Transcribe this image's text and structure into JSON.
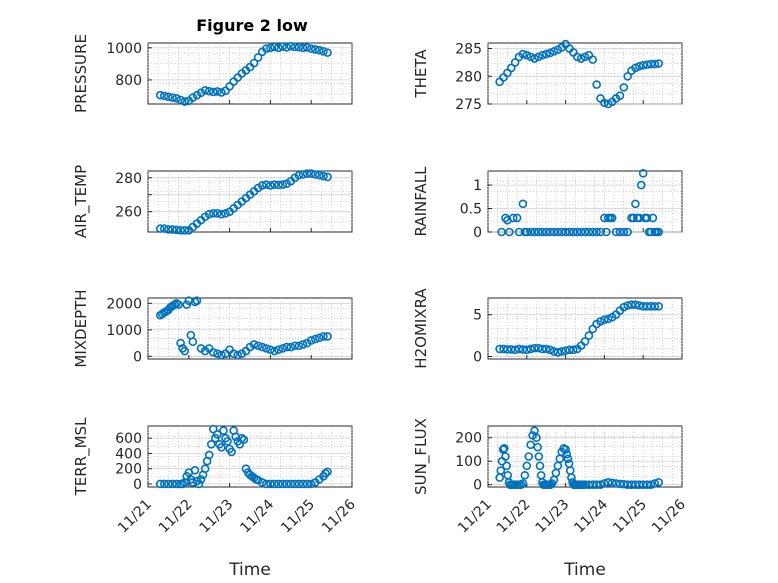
{
  "figure": {
    "title": "Figure 2 low",
    "marker_color": "#0072BD",
    "axis_color": "#262626",
    "grid": "on"
  },
  "chart_data": [
    {
      "type": "scatter",
      "id": "pressure",
      "ylabel": "PRESSURE",
      "ylim": [
        650,
        1030
      ],
      "yticks": [
        800,
        1000
      ],
      "xticks": [],
      "xlim": [
        0,
        5
      ],
      "xlabel": "",
      "x": [
        0.3,
        0.4,
        0.5,
        0.6,
        0.7,
        0.8,
        0.9,
        1.0,
        1.1,
        1.2,
        1.3,
        1.4,
        1.5,
        1.6,
        1.7,
        1.8,
        1.9,
        2.0,
        2.1,
        2.2,
        2.3,
        2.4,
        2.5,
        2.6,
        2.7,
        2.8,
        2.9,
        3.0,
        3.1,
        3.2,
        3.3,
        3.4,
        3.5,
        3.6,
        3.7,
        3.8,
        3.9,
        4.0,
        4.1,
        4.2,
        4.3,
        4.4
      ],
      "y": [
        705,
        700,
        695,
        690,
        685,
        675,
        665,
        670,
        690,
        705,
        720,
        735,
        730,
        725,
        728,
        722,
        732,
        760,
        790,
        815,
        840,
        860,
        880,
        905,
        940,
        975,
        995,
        1000,
        1005,
        1000,
        1008,
        1003,
        1010,
        1006,
        1004,
        1000,
        1002,
        995,
        990,
        985,
        978,
        970
      ]
    },
    {
      "type": "scatter",
      "id": "theta",
      "ylabel": "THETA",
      "ylim": [
        275,
        286
      ],
      "yticks": [
        275,
        280,
        285
      ],
      "xticks": [],
      "xlim": [
        0,
        5
      ],
      "xlabel": "",
      "x": [
        0.3,
        0.4,
        0.5,
        0.6,
        0.7,
        0.8,
        0.9,
        1.0,
        1.1,
        1.2,
        1.3,
        1.4,
        1.5,
        1.6,
        1.7,
        1.8,
        1.9,
        2.0,
        2.1,
        2.2,
        2.3,
        2.4,
        2.5,
        2.6,
        2.7,
        2.8,
        2.9,
        3.0,
        3.1,
        3.2,
        3.3,
        3.4,
        3.5,
        3.6,
        3.7,
        3.8,
        3.9,
        4.0,
        4.1,
        4.2,
        4.3,
        4.4
      ],
      "y": [
        279,
        279.8,
        280.6,
        281.5,
        282.5,
        283.5,
        284,
        283.8,
        283.5,
        283.2,
        283.5,
        283.8,
        284,
        284.2,
        284.5,
        284.8,
        285.2,
        285.8,
        285,
        284.3,
        283.5,
        283.2,
        283.5,
        283.8,
        283,
        278.5,
        276,
        275.2,
        275,
        275.4,
        276,
        276.5,
        278,
        280,
        281,
        281.5,
        281.8,
        282,
        282.1,
        282.2,
        282.2,
        282.3
      ]
    },
    {
      "type": "scatter",
      "id": "air-temp",
      "ylabel": "AIR_TEMP",
      "ylim": [
        248,
        284
      ],
      "yticks": [
        260,
        270,
        280
      ],
      "yticklabels": [
        "260",
        "",
        "280"
      ],
      "xticks": [],
      "xlim": [
        0,
        5
      ],
      "xlabel": "",
      "x": [
        0.3,
        0.4,
        0.5,
        0.6,
        0.7,
        0.8,
        0.9,
        1.0,
        1.1,
        1.2,
        1.3,
        1.4,
        1.5,
        1.6,
        1.7,
        1.8,
        1.9,
        2.0,
        2.1,
        2.2,
        2.3,
        2.4,
        2.5,
        2.6,
        2.7,
        2.8,
        2.9,
        3.0,
        3.1,
        3.2,
        3.3,
        3.4,
        3.5,
        3.6,
        3.7,
        3.8,
        3.9,
        4.0,
        4.1,
        4.2,
        4.3,
        4.4
      ],
      "y": [
        250,
        250,
        249.5,
        249.5,
        249.2,
        249,
        249,
        249,
        251,
        253,
        255,
        257,
        258.5,
        259,
        259,
        258.5,
        259,
        260,
        262,
        264,
        266,
        268,
        270,
        272,
        274,
        275.5,
        276,
        275.5,
        276,
        275.8,
        276,
        276.5,
        278,
        280,
        281.5,
        282,
        282.5,
        282.5,
        282,
        281.5,
        281,
        280.5
      ]
    },
    {
      "type": "scatter",
      "id": "rainfall",
      "ylabel": "RAINFALL",
      "ylim": [
        0,
        1.3
      ],
      "yticks": [
        0,
        0.5,
        1
      ],
      "xticks": [],
      "xlim": [
        0,
        5
      ],
      "xlabel": "",
      "x": [
        0.35,
        0.45,
        0.5,
        0.55,
        0.65,
        0.75,
        0.8,
        0.9,
        0.95,
        1.0,
        1.1,
        1.2,
        1.3,
        1.4,
        1.5,
        1.6,
        1.7,
        1.8,
        1.9,
        2.0,
        2.1,
        2.2,
        2.3,
        2.4,
        2.5,
        2.6,
        2.7,
        2.8,
        2.9,
        3.0,
        3.05,
        3.1,
        3.15,
        3.2,
        3.3,
        3.4,
        3.5,
        3.6,
        3.7,
        3.75,
        3.8,
        3.85,
        3.9,
        3.95,
        4.0,
        4.05,
        4.1,
        4.15,
        4.2,
        4.25,
        4.3,
        4.35,
        4.4
      ],
      "y": [
        0,
        0.3,
        0.25,
        0,
        0.3,
        0.3,
        0,
        0.6,
        0,
        0,
        0,
        0,
        0,
        0,
        0,
        0,
        0,
        0,
        0,
        0,
        0,
        0,
        0,
        0,
        0,
        0,
        0,
        0,
        0,
        0.3,
        0,
        0.3,
        0.3,
        0.3,
        0,
        0,
        0,
        0,
        0.3,
        0.3,
        0.6,
        0.3,
        0.3,
        1.0,
        1.25,
        0.3,
        0.3,
        0,
        0,
        0.3,
        0,
        0,
        0
      ]
    },
    {
      "type": "scatter",
      "id": "mixdepth",
      "ylabel": "MIXDEPTH",
      "ylim": [
        -100,
        2200
      ],
      "yticks": [
        0,
        1000,
        2000
      ],
      "xticks": [],
      "xlim": [
        0,
        5
      ],
      "xlabel": "",
      "x": [
        0.3,
        0.35,
        0.4,
        0.45,
        0.5,
        0.55,
        0.6,
        0.65,
        0.7,
        0.75,
        0.8,
        0.85,
        0.9,
        0.95,
        1.0,
        1.05,
        1.1,
        1.15,
        1.2,
        1.3,
        1.4,
        1.5,
        1.6,
        1.7,
        1.8,
        1.9,
        2.0,
        2.1,
        2.2,
        2.3,
        2.4,
        2.5,
        2.6,
        2.7,
        2.8,
        2.9,
        3.0,
        3.1,
        3.2,
        3.3,
        3.4,
        3.5,
        3.6,
        3.7,
        3.8,
        3.9,
        4.0,
        4.1,
        4.2,
        4.3,
        4.4
      ],
      "y": [
        1550,
        1600,
        1650,
        1700,
        1750,
        1850,
        1900,
        1950,
        2000,
        1950,
        500,
        300,
        200,
        1950,
        2100,
        800,
        550,
        2050,
        2100,
        300,
        200,
        300,
        150,
        100,
        50,
        100,
        250,
        100,
        50,
        100,
        200,
        350,
        450,
        400,
        350,
        300,
        250,
        200,
        250,
        300,
        350,
        350,
        400,
        400,
        450,
        500,
        600,
        650,
        700,
        750,
        750
      ]
    },
    {
      "type": "scatter",
      "id": "h2omixra",
      "ylabel": "H2OMIXRA",
      "ylim": [
        -0.3,
        7
      ],
      "yticks": [
        0,
        5
      ],
      "xticks": [],
      "xlim": [
        0,
        5
      ],
      "xlabel": "",
      "x": [
        0.3,
        0.4,
        0.5,
        0.6,
        0.7,
        0.8,
        0.9,
        1.0,
        1.1,
        1.2,
        1.3,
        1.4,
        1.5,
        1.6,
        1.7,
        1.8,
        1.9,
        2.0,
        2.1,
        2.2,
        2.3,
        2.4,
        2.5,
        2.6,
        2.7,
        2.8,
        2.9,
        3.0,
        3.1,
        3.2,
        3.3,
        3.4,
        3.5,
        3.6,
        3.7,
        3.8,
        3.9,
        4.0,
        4.1,
        4.2,
        4.3,
        4.4
      ],
      "y": [
        0.9,
        0.9,
        0.85,
        0.85,
        0.8,
        0.9,
        0.85,
        0.8,
        0.9,
        1.0,
        1.0,
        0.9,
        0.9,
        0.8,
        0.6,
        0.5,
        0.6,
        0.7,
        0.8,
        0.8,
        0.9,
        1.3,
        1.8,
        2.5,
        3.3,
        3.9,
        4.2,
        4.4,
        4.5,
        4.7,
        5.0,
        5.5,
        5.9,
        6.1,
        6.2,
        6.2,
        6.1,
        6.0,
        6.0,
        6.0,
        6.0,
        6.0
      ]
    },
    {
      "type": "scatter",
      "id": "terr-msl",
      "ylabel": "TERR_MSL",
      "ylim": [
        -40,
        760
      ],
      "yticks": [
        0,
        200,
        400,
        600
      ],
      "xticks": [
        0,
        1,
        2,
        3,
        4,
        5
      ],
      "xticklabels": [
        "11/21",
        "11/22",
        "11/23",
        "11/24",
        "11/25",
        "11/26"
      ],
      "xlim": [
        0,
        5
      ],
      "xlabel": "Time",
      "x": [
        0.3,
        0.4,
        0.5,
        0.6,
        0.7,
        0.8,
        0.85,
        0.9,
        0.95,
        1.0,
        1.05,
        1.1,
        1.15,
        1.2,
        1.25,
        1.3,
        1.35,
        1.4,
        1.45,
        1.5,
        1.55,
        1.6,
        1.65,
        1.7,
        1.75,
        1.8,
        1.85,
        1.9,
        1.95,
        2.0,
        2.05,
        2.1,
        2.15,
        2.2,
        2.25,
        2.3,
        2.35,
        2.4,
        2.45,
        2.5,
        2.55,
        2.6,
        2.65,
        2.7,
        2.8,
        2.9,
        3.0,
        3.1,
        3.2,
        3.3,
        3.4,
        3.5,
        3.6,
        3.7,
        3.8,
        3.9,
        4.0,
        4.1,
        4.2,
        4.3,
        4.35,
        4.4
      ],
      "y": [
        0,
        0,
        0,
        0,
        0,
        0,
        0,
        20,
        100,
        150,
        60,
        20,
        180,
        40,
        0,
        60,
        120,
        200,
        300,
        380,
        520,
        720,
        600,
        650,
        520,
        480,
        700,
        600,
        560,
        460,
        420,
        700,
        620,
        560,
        520,
        600,
        580,
        200,
        150,
        120,
        100,
        80,
        60,
        50,
        20,
        0,
        0,
        0,
        0,
        0,
        0,
        0,
        0,
        0,
        0,
        0,
        0,
        20,
        60,
        100,
        140,
        160
      ]
    },
    {
      "type": "scatter",
      "id": "sun-flux",
      "ylabel": "SUN_FLUX",
      "ylim": [
        -10,
        250
      ],
      "yticks": [
        0,
        100,
        200
      ],
      "xticks": [
        0,
        1,
        2,
        3,
        4,
        5
      ],
      "xticklabels": [
        "11/21",
        "11/22",
        "11/23",
        "11/24",
        "11/25",
        "11/26"
      ],
      "xlim": [
        0,
        5
      ],
      "xlabel": "Time",
      "x": [
        0.3,
        0.33,
        0.36,
        0.39,
        0.42,
        0.45,
        0.48,
        0.51,
        0.54,
        0.57,
        0.6,
        0.65,
        0.7,
        0.75,
        0.8,
        0.85,
        0.9,
        0.95,
        1.0,
        1.05,
        1.1,
        1.15,
        1.2,
        1.25,
        1.28,
        1.31,
        1.34,
        1.37,
        1.4,
        1.43,
        1.46,
        1.49,
        1.52,
        1.55,
        1.58,
        1.61,
        1.65,
        1.7,
        1.75,
        1.8,
        1.85,
        1.9,
        1.95,
        2.0,
        2.03,
        2.06,
        2.09,
        2.12,
        2.15,
        2.18,
        2.21,
        2.24,
        2.27,
        2.3,
        2.33,
        2.36,
        2.4,
        2.45,
        2.5,
        2.6,
        2.7,
        2.8,
        2.9,
        3.0,
        3.1,
        3.2,
        3.3,
        3.4,
        3.5,
        3.6,
        3.7,
        3.8,
        3.9,
        4.0,
        4.1,
        4.2,
        4.3,
        4.4
      ],
      "y": [
        30,
        60,
        100,
        150,
        155,
        120,
        80,
        40,
        10,
        0,
        0,
        0,
        0,
        0,
        0,
        0,
        5,
        40,
        80,
        120,
        170,
        210,
        230,
        200,
        160,
        120,
        80,
        40,
        10,
        0,
        0,
        0,
        0,
        0,
        0,
        0,
        5,
        20,
        50,
        80,
        110,
        140,
        155,
        150,
        130,
        110,
        90,
        60,
        30,
        10,
        0,
        0,
        0,
        0,
        0,
        0,
        0,
        0,
        0,
        0,
        0,
        0,
        0,
        5,
        10,
        8,
        5,
        3,
        2,
        0,
        0,
        0,
        0,
        0,
        0,
        0,
        5,
        10
      ]
    }
  ]
}
